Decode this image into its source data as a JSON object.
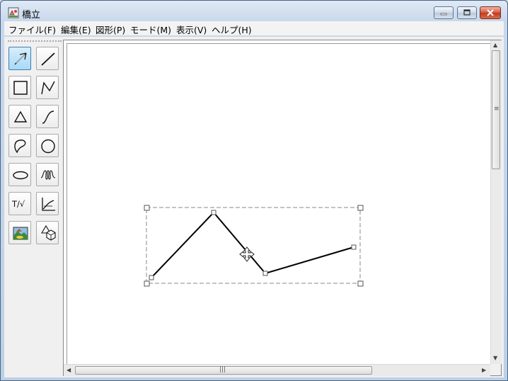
{
  "window": {
    "title": "橋立"
  },
  "menu": [
    {
      "label": "ファイル(F)"
    },
    {
      "label": "編集(E)"
    },
    {
      "label": "図形(P)"
    },
    {
      "label": "モード(M)"
    },
    {
      "label": "表示(V)"
    },
    {
      "label": "ヘルプ(H)"
    }
  ],
  "toolbox": {
    "tools": [
      {
        "name": "select",
        "active": true
      },
      {
        "name": "line"
      },
      {
        "name": "rectangle"
      },
      {
        "name": "polyline"
      },
      {
        "name": "triangle"
      },
      {
        "name": "curve"
      },
      {
        "name": "freeform"
      },
      {
        "name": "circle"
      },
      {
        "name": "ellipse"
      },
      {
        "name": "spring"
      },
      {
        "name": "text-formula"
      },
      {
        "name": "graph"
      },
      {
        "name": "image"
      },
      {
        "name": "shapes-3d"
      }
    ],
    "text_tool_label": "T/√"
  },
  "colors": {
    "accent": "#3c7fb1",
    "close_button": "#c23a1d",
    "canvas": "#ffffff"
  }
}
